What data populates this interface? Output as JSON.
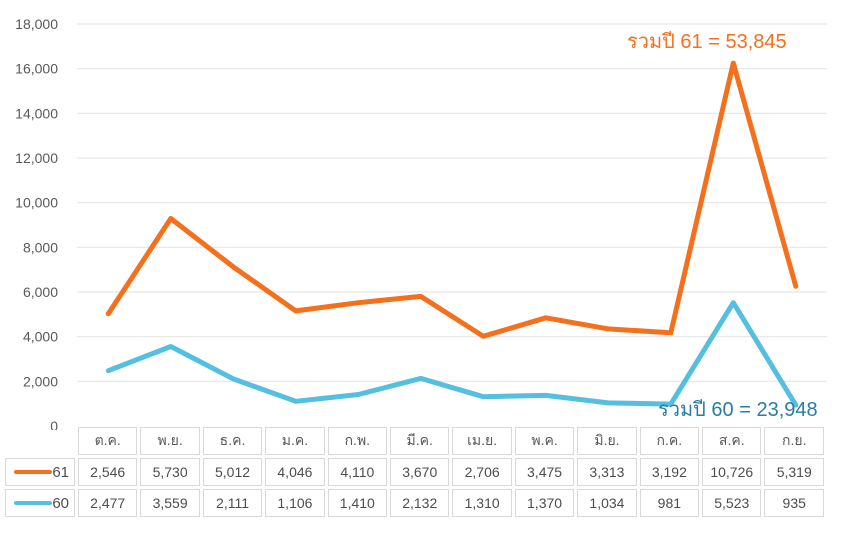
{
  "chart_data": {
    "type": "line",
    "stacked": true,
    "title": "",
    "xlabel": "",
    "ylabel": "",
    "x_categories": [
      "ต.ค.",
      "พ.ย.",
      "ธ.ค.",
      "ม.ค.",
      "ก.พ.",
      "มี.ค.",
      "เม.ย.",
      "พ.ค.",
      "มิ.ย.",
      "ก.ค.",
      "ส.ค.",
      "ก.ย."
    ],
    "series": [
      {
        "name": "61",
        "color": "#F4701D",
        "values": [
          2546,
          5730,
          5012,
          4046,
          4110,
          3670,
          2706,
          3475,
          3313,
          3192,
          10726,
          5319
        ]
      },
      {
        "name": "60",
        "color": "#55BFE0",
        "values": [
          2477,
          3559,
          2111,
          1106,
          1410,
          2132,
          1310,
          1370,
          1034,
          981,
          5523,
          935
        ]
      }
    ],
    "ylim": [
      0,
      18000
    ],
    "y_step": 2000,
    "grid": true,
    "legend_position": "table-left-column",
    "annotations": [
      {
        "text": "รวมปี 61 = 53,845",
        "total": 53845,
        "color": "#F4701D"
      },
      {
        "text": "รวมปี 60 = 23,948",
        "total": 23948,
        "color": "#2A7DA0"
      }
    ]
  },
  "colors": {
    "gridline": "#E2E2E2",
    "axis_text": "#595959",
    "table_border": "#D9D9D9",
    "table_text": "#4D4D4D"
  }
}
